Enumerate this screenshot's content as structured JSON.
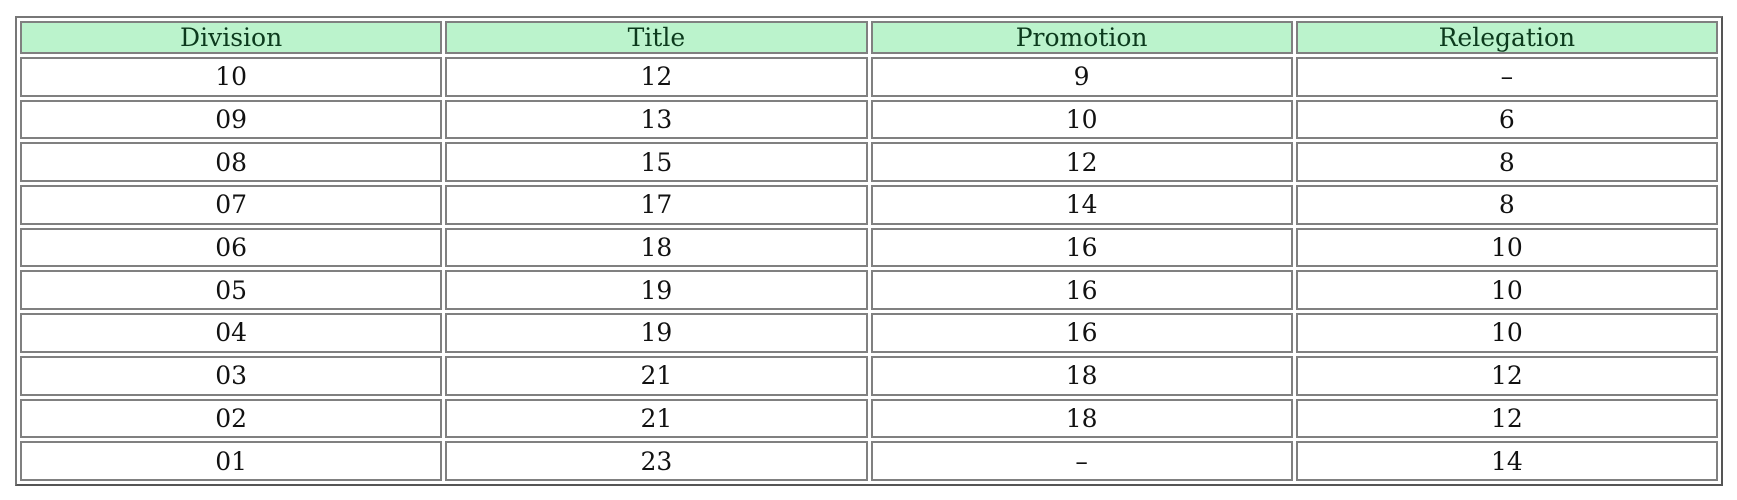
{
  "table": {
    "headers": [
      "Division",
      "Title",
      "Promotion",
      "Relegation"
    ],
    "rows": [
      [
        "10",
        "12",
        "9",
        "–"
      ],
      [
        "09",
        "13",
        "10",
        "6"
      ],
      [
        "08",
        "15",
        "12",
        "8"
      ],
      [
        "07",
        "17",
        "14",
        "8"
      ],
      [
        "06",
        "18",
        "16",
        "10"
      ],
      [
        "05",
        "19",
        "16",
        "10"
      ],
      [
        "04",
        "19",
        "16",
        "10"
      ],
      [
        "03",
        "21",
        "18",
        "12"
      ],
      [
        "02",
        "21",
        "18",
        "12"
      ],
      [
        "01",
        "23",
        "–",
        "14"
      ]
    ]
  },
  "colors": {
    "header_bg": "#bbf3cc"
  }
}
